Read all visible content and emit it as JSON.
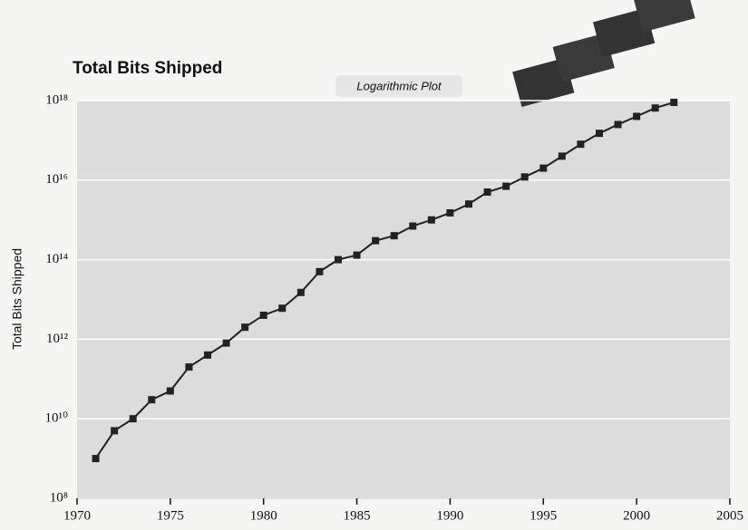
{
  "chart_data": {
    "type": "line",
    "title": "Total Bits Shipped",
    "subtitle": "Logarithmic Plot",
    "y_label": "Total Bits Shipped",
    "x": [
      1971,
      1972,
      1973,
      1974,
      1975,
      1976,
      1977,
      1978,
      1979,
      1980,
      1981,
      1982,
      1983,
      1984,
      1985,
      1986,
      1987,
      1988,
      1989,
      1990,
      1991,
      1992,
      1993,
      1994,
      1995,
      1996,
      1997,
      1998,
      1999,
      2000,
      2001,
      2002
    ],
    "values": [
      1000000000.0,
      5000000000.0,
      10000000000.0,
      30000000000.0,
      50000000000.0,
      200000000000.0,
      400000000000.0,
      800000000000.0,
      2000000000000.0,
      4000000000000.0,
      6000000000000.0,
      15000000000000.0,
      50000000000000.0,
      100000000000000.0,
      130000000000000.0,
      300000000000000.0,
      400000000000000.0,
      700000000000000.0,
      1000000000000000.0,
      1500000000000000.0,
      2500000000000000.0,
      5000000000000000.0,
      7000000000000000.0,
      1.2e+16,
      2e+16,
      4e+16,
      8e+16,
      1.5e+17,
      2.5e+17,
      4e+17,
      6.5e+17,
      9e+17
    ],
    "color": "#222222",
    "xlim": [
      1970,
      2005
    ],
    "xticks": [
      1970,
      1975,
      1980,
      1985,
      1990,
      1995,
      2000,
      2005
    ],
    "ylim": [
      100000000.0,
      1e+18
    ],
    "log_y": true,
    "grid": true,
    "yticks": [
      {
        "value": 100000000.0,
        "label": "10⁸"
      },
      {
        "value": 10000000000.0,
        "label": "10¹⁰"
      },
      {
        "value": 1000000000000.0,
        "label": "10¹²"
      },
      {
        "value": 100000000000000.0,
        "label": "10¹⁴"
      },
      {
        "value": 1e+16,
        "label": "10¹⁶"
      },
      {
        "value": 1e+18,
        "label": "10¹⁸"
      }
    ]
  }
}
